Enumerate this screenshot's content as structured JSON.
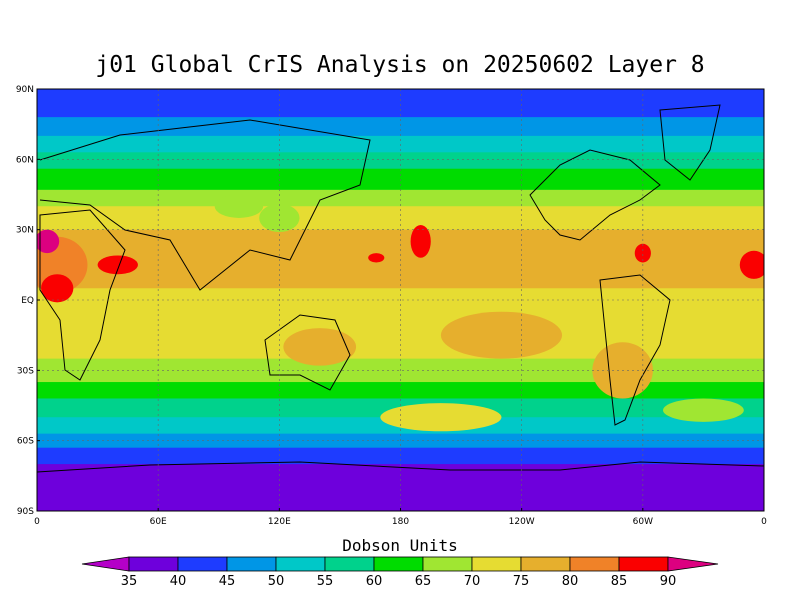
{
  "title": "j01 Global CrIS Analysis on 20250602 Layer 8",
  "lat_ticks": [
    "90N",
    "60N",
    "30N",
    "EQ",
    "30S",
    "60S",
    "90S"
  ],
  "lon_ticks": [
    "0",
    "60E",
    "120E",
    "180",
    "120W",
    "60W",
    "0"
  ],
  "colorbar": {
    "title": "Dobson Units",
    "levels": [
      35,
      40,
      45,
      50,
      55,
      60,
      65,
      70,
      75,
      80,
      85,
      90
    ],
    "colors": [
      "#b400c8",
      "#6e00dc",
      "#1e3cff",
      "#0096e6",
      "#00c8c8",
      "#00d28c",
      "#00dc00",
      "#a0e632",
      "#e6dc32",
      "#e6af2d",
      "#f08228",
      "#fa0000",
      "#dc0080"
    ]
  },
  "bands": [
    {
      "from": 90,
      "to": 78,
      "level_index": 2
    },
    {
      "from": 78,
      "to": 70,
      "level_index": 3
    },
    {
      "from": 70,
      "to": 63,
      "level_index": 4
    },
    {
      "from": 63,
      "to": 56,
      "level_index": 5
    },
    {
      "from": 56,
      "to": 47,
      "level_index": 6
    },
    {
      "from": 47,
      "to": 40,
      "level_index": 7
    },
    {
      "from": 40,
      "to": 30,
      "level_index": 8
    },
    {
      "from": 30,
      "to": 5,
      "level_index": 9
    },
    {
      "from": 5,
      "to": -25,
      "level_index": 8
    },
    {
      "from": -25,
      "to": -35,
      "level_index": 7
    },
    {
      "from": -35,
      "to": -42,
      "level_index": 6
    },
    {
      "from": -42,
      "to": -50,
      "level_index": 5
    },
    {
      "from": -50,
      "to": -57,
      "level_index": 4
    },
    {
      "from": -57,
      "to": -63,
      "level_index": 3
    },
    {
      "from": -63,
      "to": -70,
      "level_index": 2
    },
    {
      "from": -70,
      "to": -90,
      "level_index": 1
    }
  ],
  "blobs": [
    {
      "lon": 10,
      "lat": 15,
      "rx": 15,
      "ry": 12,
      "level_index": 10
    },
    {
      "lon": 5,
      "lat": 25,
      "rx": 6,
      "ry": 5,
      "level_index": 12
    },
    {
      "lon": 10,
      "lat": 5,
      "rx": 8,
      "ry": 6,
      "level_index": 11
    },
    {
      "lon": 40,
      "lat": 15,
      "rx": 10,
      "ry": 4,
      "level_index": 11
    },
    {
      "lon": 190,
      "lat": 25,
      "rx": 5,
      "ry": 7,
      "level_index": 11
    },
    {
      "lon": 168,
      "lat": 18,
      "rx": 4,
      "ry": 2,
      "level_index": 11
    },
    {
      "lon": 300,
      "lat": 20,
      "rx": 4,
      "ry": 4,
      "level_index": 11
    },
    {
      "lon": 355,
      "lat": 15,
      "rx": 7,
      "ry": 6,
      "level_index": 11
    },
    {
      "lon": 140,
      "lat": -20,
      "rx": 18,
      "ry": 8,
      "level_index": 9
    },
    {
      "lon": 230,
      "lat": -15,
      "rx": 30,
      "ry": 10,
      "level_index": 9
    },
    {
      "lon": 290,
      "lat": -30,
      "rx": 15,
      "ry": 12,
      "level_index": 9
    },
    {
      "lon": 120,
      "lat": 35,
      "rx": 10,
      "ry": 6,
      "level_index": 7
    },
    {
      "lon": 100,
      "lat": 40,
      "rx": 12,
      "ry": 5,
      "level_index": 7
    },
    {
      "lon": 200,
      "lat": -50,
      "rx": 30,
      "ry": 6,
      "level_index": 8
    },
    {
      "lon": 330,
      "lat": -47,
      "rx": 20,
      "ry": 5,
      "level_index": 7
    }
  ]
}
